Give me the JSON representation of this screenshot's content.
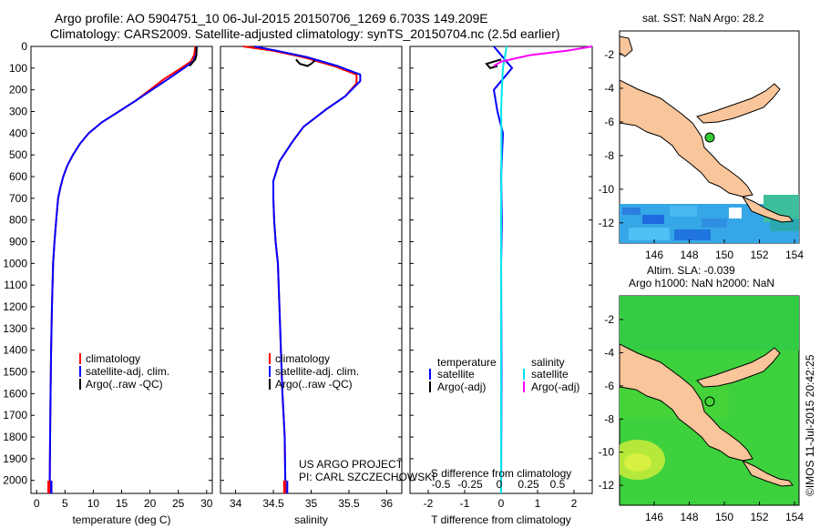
{
  "header": {
    "line1": "Argo profile: AO 5904751_10 06-Jul-2015 20150706_1269 6.703S 149.209E",
    "line2": "Climatology: CARS2009. Satellite-adjusted climatology: synTS_20150704.nc (2.5d earlier)"
  },
  "credit": {
    "line1": "US ARGO PROJECT",
    "line2": "PI: CARL SZCZECHOWSKI"
  },
  "timestamp": "©IMOS 11-Jul-2015 20:42:25",
  "map_top": {
    "title": "sat. SST: NaN Argo: 28.2",
    "lat_ticks": [
      "-2",
      "-4",
      "-6",
      "-8",
      "-10",
      "-12"
    ],
    "lon_ticks": [
      "146",
      "148",
      "150",
      "152",
      "154"
    ]
  },
  "map_bottom": {
    "title1": "Altim. SLA: -0.039",
    "title2": "Argo h1000: NaN h2000: NaN",
    "lat_ticks": [
      "-2",
      "-4",
      "-6",
      "-8",
      "-10",
      "-12"
    ],
    "lon_ticks": [
      "146",
      "148",
      "150",
      "152",
      "154"
    ]
  },
  "colors": {
    "climatology": "#ff0000",
    "satellite": "#0000ff",
    "argo": "#000000",
    "sal_satellite": "#00e5ee",
    "sal_argo": "#ff00ff",
    "land": "#f9c59a",
    "dot": "#33cc33"
  },
  "chart_data": [
    {
      "type": "line",
      "id": "temperature",
      "xlabel": "temperature (deg C)",
      "xlim": [
        -1,
        31
      ],
      "xticks": [
        0,
        5,
        10,
        15,
        20,
        25,
        30
      ],
      "ylim": [
        2060,
        0
      ],
      "yticks": [
        0,
        100,
        200,
        300,
        400,
        500,
        600,
        700,
        800,
        900,
        1000,
        1100,
        1200,
        1300,
        1400,
        1500,
        1600,
        1700,
        1800,
        1900,
        2000
      ],
      "legend": [
        "climatology",
        "satellite-adj. clim.",
        "Argo(..raw -QC)"
      ],
      "series": [
        {
          "name": "climatology",
          "color": "#ff0000",
          "x": [
            28.0,
            27.8,
            27.2,
            25.5,
            22.5,
            17.5,
            14.5,
            11.5,
            9.2,
            7.6,
            6.4,
            5.4,
            4.7,
            4.2,
            3.8,
            3.45,
            3.15,
            2.9,
            2.7,
            2.55,
            2.45,
            2.38,
            2.3
          ],
          "y": [
            0,
            40,
            70,
            100,
            150,
            250,
            300,
            350,
            400,
            450,
            500,
            550,
            600,
            650,
            700,
            800,
            900,
            1000,
            1200,
            1400,
            1600,
            1800,
            2060
          ]
        },
        {
          "name": "satellite",
          "color": "#0000ff",
          "x": [
            28.3,
            28.1,
            27.6,
            26.0,
            23.2,
            17.5,
            14.5,
            11.5,
            9.2,
            7.6,
            6.4,
            5.4,
            4.7,
            4.2,
            3.8,
            3.45,
            3.15,
            2.9,
            2.7,
            2.55,
            2.45,
            2.38,
            2.3
          ],
          "y": [
            0,
            40,
            70,
            100,
            150,
            250,
            300,
            350,
            400,
            450,
            500,
            550,
            600,
            650,
            700,
            800,
            900,
            1000,
            1200,
            1400,
            1600,
            1800,
            2060
          ]
        },
        {
          "name": "argo",
          "color": "#000000",
          "x": [
            28.2,
            28.2,
            28.0,
            27.0
          ],
          "y": [
            0,
            40,
            60,
            90
          ]
        }
      ]
    },
    {
      "type": "line",
      "id": "salinity",
      "xlabel": "salinity",
      "xlim": [
        33.8,
        36.2
      ],
      "xticks": [
        34,
        34.5,
        35,
        35.5,
        36
      ],
      "ylim": [
        2060,
        0
      ],
      "legend": [
        "climatology",
        "satellite-adj. clim.",
        "Argo(..raw -QC)"
      ],
      "series": [
        {
          "name": "climatology",
          "color": "#ff0000",
          "x": [
            34.1,
            34.5,
            34.9,
            35.3,
            35.6,
            35.6,
            35.45,
            35.2,
            34.9,
            34.75,
            34.58,
            34.5,
            34.5,
            34.51,
            34.53,
            34.56,
            34.58,
            34.6,
            34.62,
            34.65,
            34.66
          ],
          "y": [
            0,
            20,
            50,
            90,
            130,
            170,
            230,
            290,
            370,
            440,
            530,
            620,
            700,
            800,
            900,
            1000,
            1200,
            1400,
            1600,
            1800,
            2060
          ]
        },
        {
          "name": "satellite",
          "color": "#0000ff",
          "x": [
            34.25,
            34.55,
            34.95,
            35.35,
            35.65,
            35.65,
            35.45,
            35.2,
            34.9,
            34.75,
            34.58,
            34.5,
            34.5,
            34.51,
            34.53,
            34.56,
            34.58,
            34.6,
            34.62,
            34.65,
            34.66
          ],
          "y": [
            0,
            20,
            50,
            90,
            130,
            160,
            230,
            290,
            370,
            440,
            530,
            620,
            700,
            800,
            900,
            1000,
            1200,
            1400,
            1600,
            1800,
            2060
          ]
        },
        {
          "name": "argo",
          "color": "#000000",
          "x": [
            34.8,
            34.85,
            34.95,
            35.0,
            35.05
          ],
          "y": [
            60,
            80,
            90,
            80,
            65
          ]
        }
      ]
    },
    {
      "type": "line",
      "id": "difference",
      "xlabel": "T difference from climatology",
      "xlabel2": "S difference from climatology",
      "xlim": [
        -2.5,
        2.5
      ],
      "xticks": [
        -2,
        -1,
        0,
        1,
        2
      ],
      "xticks2": [
        -0.5,
        -0.25,
        0,
        0.25,
        0.5
      ],
      "ylim": [
        2060,
        0
      ],
      "legend": {
        "left_title": "temperature",
        "right_title": "salinity",
        "items": [
          "satellite",
          "Argo(-adj)",
          "satellite",
          "Argo(-adj)"
        ]
      },
      "series": [
        {
          "name": "T satellite",
          "color": "#0000ff",
          "x": [
            -0.2,
            0.1,
            0.3,
            -0.2,
            -0.1,
            0.05,
            0.0,
            0.02,
            0.0,
            0.01,
            0.0
          ],
          "y": [
            0,
            60,
            100,
            200,
            300,
            400,
            600,
            800,
            1000,
            1500,
            2060
          ]
        },
        {
          "name": "T Argo(-adj)",
          "color": "#000000",
          "x": [
            0.0,
            -0.4,
            -0.3,
            -0.1
          ],
          "y": [
            60,
            80,
            100,
            90
          ]
        },
        {
          "name": "S satellite",
          "color": "#00e5ee",
          "x": [
            0.15,
            0.05,
            0.02,
            0.0,
            0.01,
            0.0,
            0.0,
            0.0
          ],
          "y": [
            0,
            100,
            200,
            300,
            400,
            800,
            1400,
            2060
          ]
        },
        {
          "name": "S Argo(-adj)",
          "color": "#ff00ff",
          "x": [
            2.5,
            1.8,
            0.8,
            0.0,
            -0.2
          ],
          "y": [
            0,
            20,
            40,
            70,
            90
          ]
        }
      ]
    }
  ]
}
